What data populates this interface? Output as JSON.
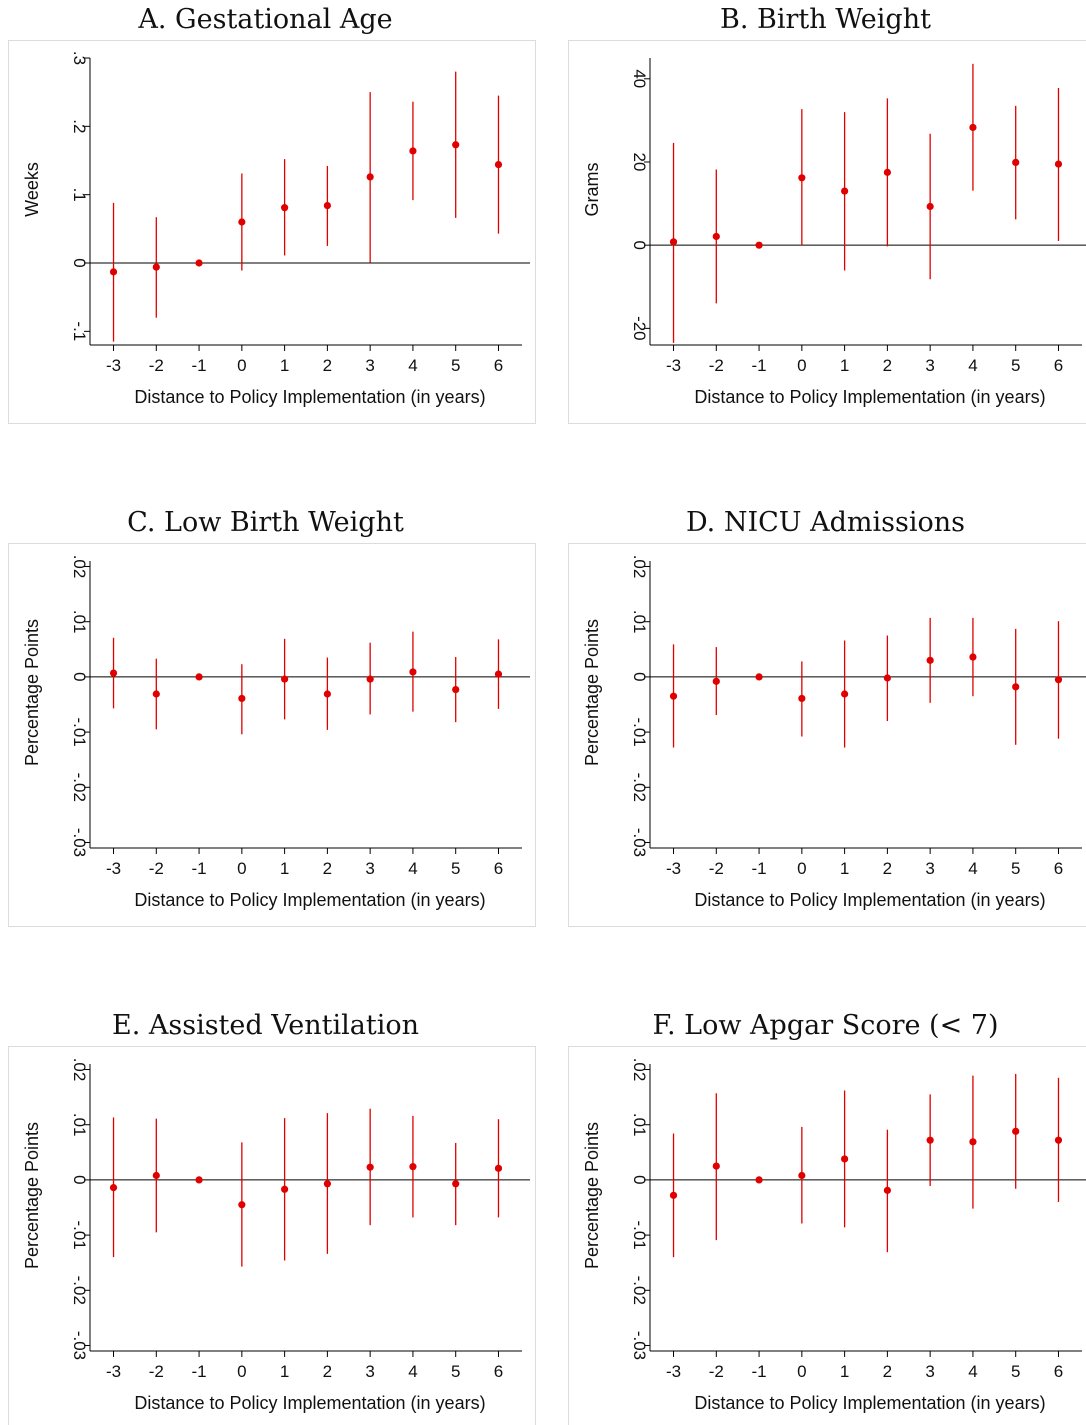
{
  "colors": {
    "marker": "#e00000",
    "ci_line": "#e00000",
    "zero_line": "#000000",
    "axis": "#000000",
    "panel_border": "#dcdcdc",
    "background": "#ffffff"
  },
  "chart_data": [
    {
      "type": "scatter",
      "title": "A. Gestational Age",
      "xlabel": "Distance to Policy Implementation (in years)",
      "ylabel": "Weeks",
      "ylim": [
        -0.12,
        0.3
      ],
      "yticks": [
        -0.1,
        0,
        0.1,
        0.2,
        0.3
      ],
      "ytick_labels": [
        "-.1",
        "0",
        ".1",
        ".2",
        ".3"
      ],
      "x": [
        -3,
        -2,
        -1,
        0,
        1,
        2,
        3,
        4,
        5,
        6
      ],
      "xtick_labels": [
        "-3",
        "-2",
        "-1",
        "0",
        "1",
        "2",
        "3",
        "4",
        "5",
        "6"
      ],
      "reference_line": 0,
      "series": [
        {
          "estimate": [
            -0.013,
            -0.006,
            0,
            0.06,
            0.081,
            0.084,
            0.126,
            0.164,
            0.173,
            0.144
          ],
          "ci_low": [
            -0.115,
            -0.08,
            0,
            -0.011,
            0.011,
            0.025,
            0.001,
            0.092,
            0.066,
            0.043
          ],
          "ci_high": [
            0.088,
            0.067,
            0,
            0.131,
            0.152,
            0.142,
            0.25,
            0.236,
            0.28,
            0.245
          ]
        }
      ]
    },
    {
      "type": "scatter",
      "title": "B. Birth Weight",
      "xlabel": "Distance to Policy Implementation (in years)",
      "ylabel": "Grams",
      "ylim": [
        -24,
        45
      ],
      "yticks": [
        -20,
        0,
        20,
        40
      ],
      "ytick_labels": [
        "-20",
        "0",
        "20",
        "40"
      ],
      "x": [
        -3,
        -2,
        -1,
        0,
        1,
        2,
        3,
        4,
        5,
        6
      ],
      "xtick_labels": [
        "-3",
        "-2",
        "-1",
        "0",
        "1",
        "2",
        "3",
        "4",
        "5",
        "6"
      ],
      "reference_line": 0,
      "series": [
        {
          "estimate": [
            0.8,
            2.1,
            0,
            16.2,
            13.0,
            17.5,
            9.3,
            28.3,
            19.9,
            19.5
          ],
          "ci_low": [
            -23.5,
            -14.0,
            0,
            0,
            -6.1,
            -0.3,
            -8.2,
            13.1,
            6.2,
            1.0
          ],
          "ci_high": [
            24.6,
            18.2,
            0,
            32.7,
            32.0,
            35.3,
            26.8,
            43.6,
            33.5,
            37.8
          ]
        }
      ]
    },
    {
      "type": "scatter",
      "title": "C. Low Birth Weight",
      "xlabel": "Distance to Policy Implementation (in years)",
      "ylabel": "Percentage Points",
      "ylim": [
        -0.031,
        0.021
      ],
      "yticks": [
        -0.03,
        -0.02,
        -0.01,
        0,
        0.01,
        0.02
      ],
      "ytick_labels": [
        "-.03",
        "-.02",
        "-.01",
        "0",
        ".01",
        ".02"
      ],
      "x": [
        -3,
        -2,
        -1,
        0,
        1,
        2,
        3,
        4,
        5,
        6
      ],
      "xtick_labels": [
        "-3",
        "-2",
        "-1",
        "0",
        "1",
        "2",
        "3",
        "4",
        "5",
        "6"
      ],
      "reference_line": 0,
      "series": [
        {
          "estimate": [
            0.0007,
            -0.0031,
            0,
            -0.0039,
            -0.0004,
            -0.0031,
            -0.0004,
            0.0009,
            -0.0023,
            0.0005
          ],
          "ci_low": [
            -0.0057,
            -0.0095,
            0,
            -0.0104,
            -0.0077,
            -0.0096,
            -0.0068,
            -0.0063,
            -0.0082,
            -0.0058
          ],
          "ci_high": [
            0.0071,
            0.0033,
            0,
            0.0023,
            0.0069,
            0.0035,
            0.0062,
            0.0082,
            0.0036,
            0.0068
          ]
        }
      ]
    },
    {
      "type": "scatter",
      "title": "D. NICU Admissions",
      "xlabel": "Distance to Policy Implementation (in years)",
      "ylabel": "Percentage Points",
      "ylim": [
        -0.031,
        0.021
      ],
      "yticks": [
        -0.03,
        -0.02,
        -0.01,
        0,
        0.01,
        0.02
      ],
      "ytick_labels": [
        "-.03",
        "-.02",
        "-.01",
        "0",
        ".01",
        ".02"
      ],
      "x": [
        -3,
        -2,
        -1,
        0,
        1,
        2,
        3,
        4,
        5,
        6
      ],
      "xtick_labels": [
        "-3",
        "-2",
        "-1",
        "0",
        "1",
        "2",
        "3",
        "4",
        "5",
        "6"
      ],
      "reference_line": 0,
      "series": [
        {
          "estimate": [
            -0.0035,
            -0.0008,
            0,
            -0.0039,
            -0.0031,
            -0.0002,
            0.003,
            0.0036,
            -0.0018,
            -0.0005
          ],
          "ci_low": [
            -0.0128,
            -0.0069,
            0,
            -0.0108,
            -0.0128,
            -0.008,
            -0.0047,
            -0.0035,
            -0.0123,
            -0.0112
          ],
          "ci_high": [
            0.0059,
            0.0054,
            0,
            0.0028,
            0.0066,
            0.0075,
            0.0107,
            0.0107,
            0.0087,
            0.0101
          ]
        }
      ]
    },
    {
      "type": "scatter",
      "title": "E. Assisted Ventilation",
      "xlabel": "Distance to Policy Implementation (in years)",
      "ylabel": "Percentage Points",
      "ylim": [
        -0.031,
        0.021
      ],
      "yticks": [
        -0.03,
        -0.02,
        -0.01,
        0,
        0.01,
        0.02
      ],
      "ytick_labels": [
        "-.03",
        "-.02",
        "-.01",
        "0",
        ".01",
        ".02"
      ],
      "x": [
        -3,
        -2,
        -1,
        0,
        1,
        2,
        3,
        4,
        5,
        6
      ],
      "xtick_labels": [
        "-3",
        "-2",
        "-1",
        "0",
        "1",
        "2",
        "3",
        "4",
        "5",
        "6"
      ],
      "reference_line": 0,
      "series": [
        {
          "estimate": [
            -0.0014,
            0.0008,
            0,
            -0.0045,
            -0.0017,
            -0.0007,
            0.0023,
            0.0024,
            -0.0007,
            0.0021
          ],
          "ci_low": [
            -0.014,
            -0.0095,
            0,
            -0.0157,
            -0.0146,
            -0.0134,
            -0.0082,
            -0.0068,
            -0.0082,
            -0.0068
          ],
          "ci_high": [
            0.0113,
            0.0111,
            0,
            0.0068,
            0.0112,
            0.0121,
            0.0129,
            0.0116,
            0.0067,
            0.011
          ]
        }
      ]
    },
    {
      "type": "scatter",
      "title": "F. Low Apgar Score (< 7)",
      "xlabel": "Distance to Policy Implementation (in years)",
      "ylabel": "Percentage Points",
      "ylim": [
        -0.031,
        0.021
      ],
      "yticks": [
        -0.03,
        -0.02,
        -0.01,
        0,
        0.01,
        0.02
      ],
      "ytick_labels": [
        "-.03",
        "-.02",
        "-.01",
        "0",
        ".01",
        ".02"
      ],
      "x": [
        -3,
        -2,
        -1,
        0,
        1,
        2,
        3,
        4,
        5,
        6
      ],
      "xtick_labels": [
        "-3",
        "-2",
        "-1",
        "0",
        "1",
        "2",
        "3",
        "4",
        "5",
        "6"
      ],
      "reference_line": 0,
      "series": [
        {
          "estimate": [
            -0.0028,
            0.0025,
            0,
            0.0008,
            0.0038,
            -0.0019,
            0.0072,
            0.0069,
            0.0088,
            0.0072
          ],
          "ci_low": [
            -0.014,
            -0.0109,
            0,
            -0.0079,
            -0.0086,
            -0.0131,
            -0.0011,
            -0.0052,
            -0.0016,
            -0.004
          ],
          "ci_high": [
            0.0084,
            0.0157,
            0,
            0.0096,
            0.0162,
            0.0091,
            0.0155,
            0.0189,
            0.0192,
            0.0185
          ]
        }
      ]
    }
  ]
}
